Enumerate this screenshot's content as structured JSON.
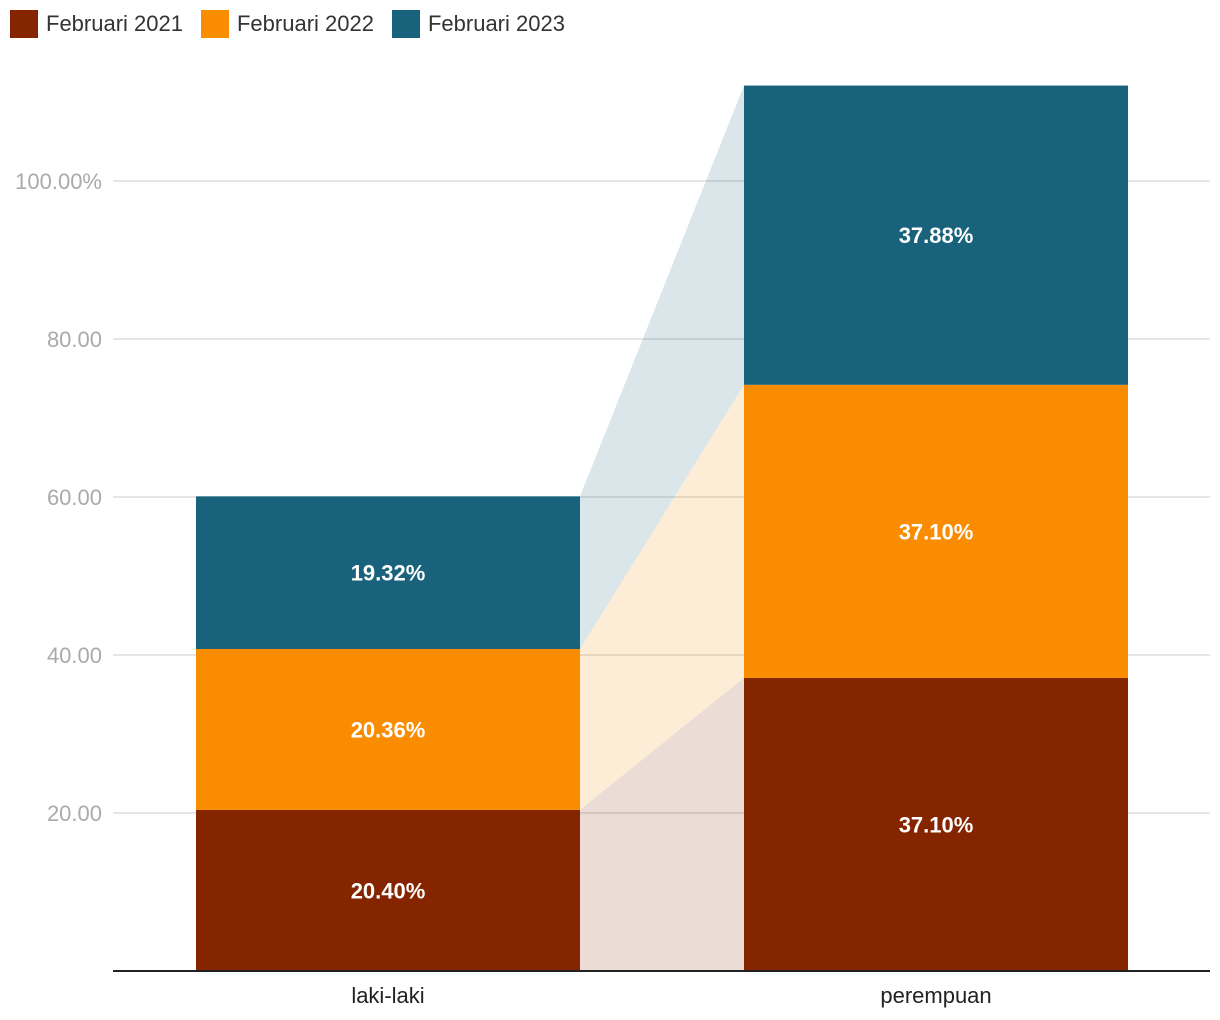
{
  "chart_data": {
    "type": "bar",
    "stacked": true,
    "categories": [
      "laki-laki",
      "perempuan"
    ],
    "series": [
      {
        "name": "Februari 2021",
        "values": [
          20.4,
          37.1
        ],
        "color": "#852500",
        "labels": [
          "20.40%",
          "37.10%"
        ]
      },
      {
        "name": "Februari 2022",
        "values": [
          20.36,
          37.1
        ],
        "color": "#f98c00",
        "labels": [
          "20.36%",
          "37.10%"
        ]
      },
      {
        "name": "Februari 2023",
        "values": [
          19.32,
          37.88
        ],
        "color": "#18627b",
        "labels": [
          "19.32%",
          "37.88%"
        ]
      }
    ],
    "yticks": [
      {
        "value": 20,
        "label": "20.00"
      },
      {
        "value": 40,
        "label": "40.00"
      },
      {
        "value": 60,
        "label": "60.00"
      },
      {
        "value": 80,
        "label": "80.00"
      },
      {
        "value": 100,
        "label": "100.00%"
      }
    ],
    "ylim": [
      0,
      112.1
    ],
    "grid": true,
    "legend_position": "top-left",
    "connectors": true
  }
}
